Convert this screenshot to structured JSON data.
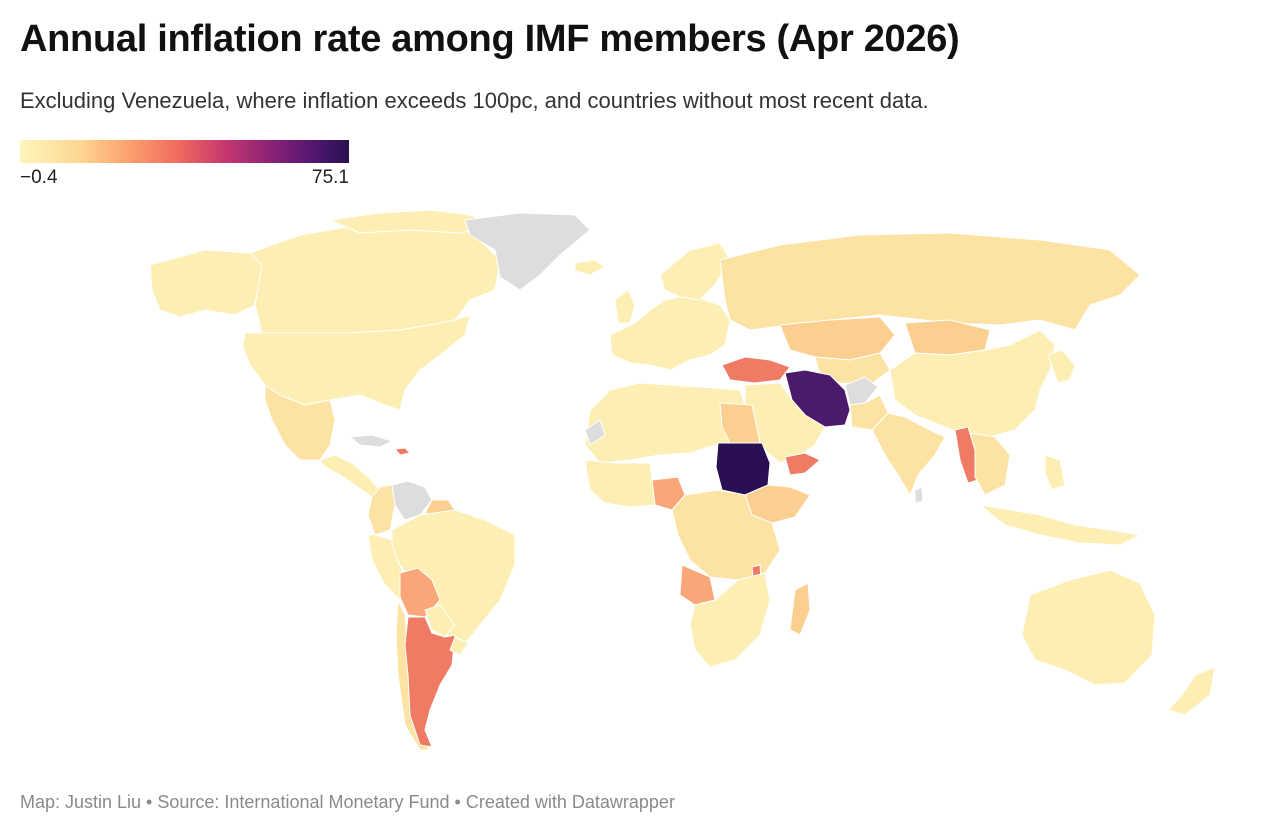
{
  "title": "Annual inflation rate among IMF members (Apr 2026)",
  "subtitle": "Excluding Venezuela, where inflation exceeds 100pc, and countries without most recent data.",
  "legend": {
    "min": "−0.4",
    "max": "75.1",
    "colors": [
      "#fef6bd",
      "#fdd792",
      "#fca06e",
      "#ef6b5d",
      "#c7396e",
      "#8b2276",
      "#4e1670",
      "#28124f"
    ]
  },
  "colors": {
    "no_data": "#dddddd",
    "low": "#fdeeb3",
    "low_mid": "#fce2a3",
    "mid": "#fbcf8f",
    "mid_high": "#f9a779",
    "high": "#ef7b65",
    "very_high": "#4b1a6a",
    "extreme": "#2a0f52"
  },
  "footer": "Map: Justin Liu • Source: International Monetary Fund • Created with Datawrapper"
}
